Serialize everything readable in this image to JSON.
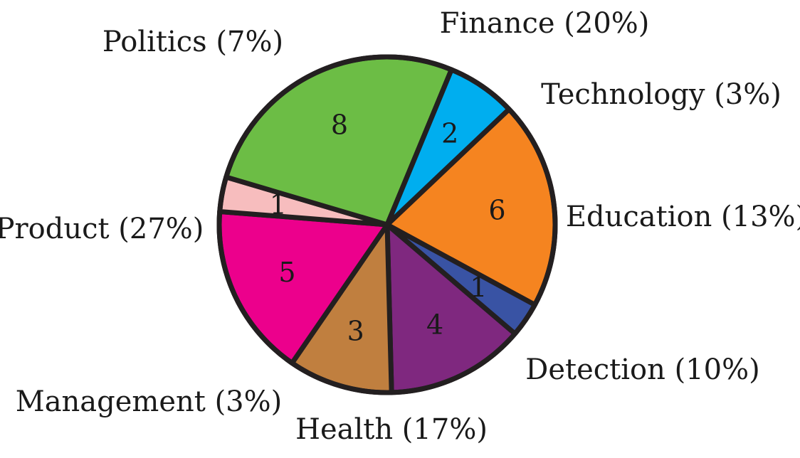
{
  "chart_data": {
    "type": "pie",
    "slices": [
      {
        "label": "Finance (20%)",
        "value": 6,
        "color": "#F58420"
      },
      {
        "label": "Technology (3%)",
        "value": 1,
        "color": "#3953A4"
      },
      {
        "label": "Education (13%)",
        "value": 4,
        "color": "#7F287F"
      },
      {
        "label": "Detection (10%)",
        "value": 3,
        "color": "#C07F3F"
      },
      {
        "label": "Health (17%)",
        "value": 5,
        "color": "#EC008C"
      },
      {
        "label": "Management (3%)",
        "value": 1,
        "color": "#F7BDBE"
      },
      {
        "label": "Product (27%)",
        "value": 8,
        "color": "#6CBD45"
      },
      {
        "label": "Politics (7%)",
        "value": 2,
        "color": "#00AEEF"
      }
    ]
  }
}
